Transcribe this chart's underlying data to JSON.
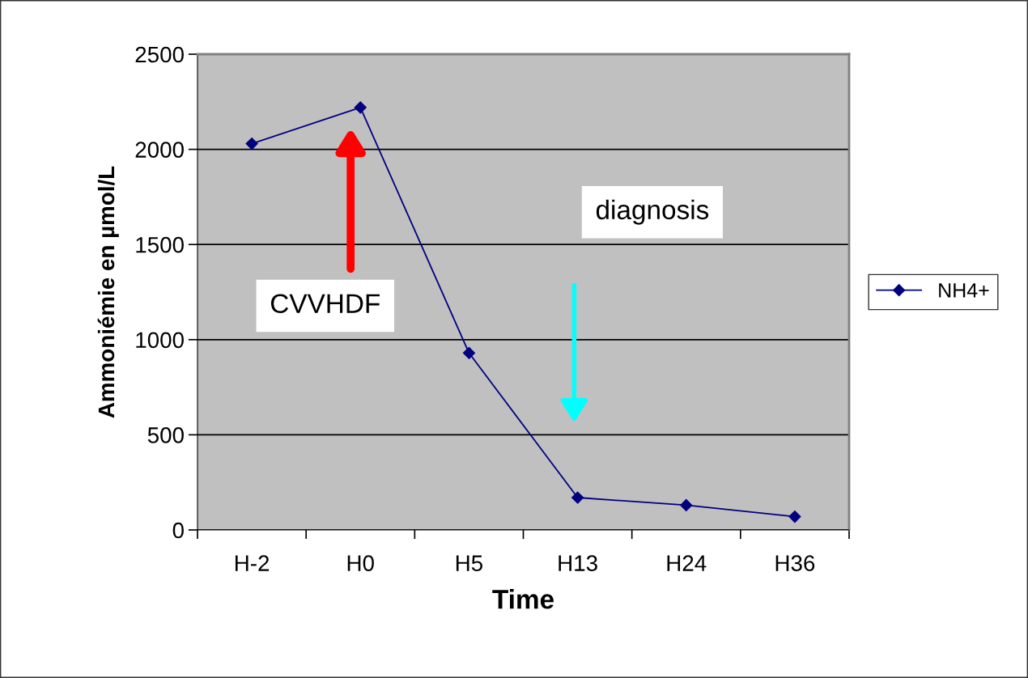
{
  "chart_data": {
    "type": "line",
    "xlabel": "Time",
    "ylabel": "Ammoniémie en µmol/L",
    "categories": [
      "H-2",
      "H0",
      "H5",
      "H13",
      "H24",
      "H36"
    ],
    "series": [
      {
        "name": "NH4+",
        "color": "#000080",
        "values": [
          2030,
          2220,
          930,
          170,
          130,
          70
        ]
      }
    ],
    "ylim": [
      0,
      2500
    ],
    "yticks": [
      0,
      500,
      1000,
      1500,
      2000,
      2500
    ],
    "grid": "y",
    "legend": "right",
    "marker": "diamond",
    "line_style": "solid",
    "annotations": [
      "CVVHDF",
      "diagnosis"
    ]
  }
}
